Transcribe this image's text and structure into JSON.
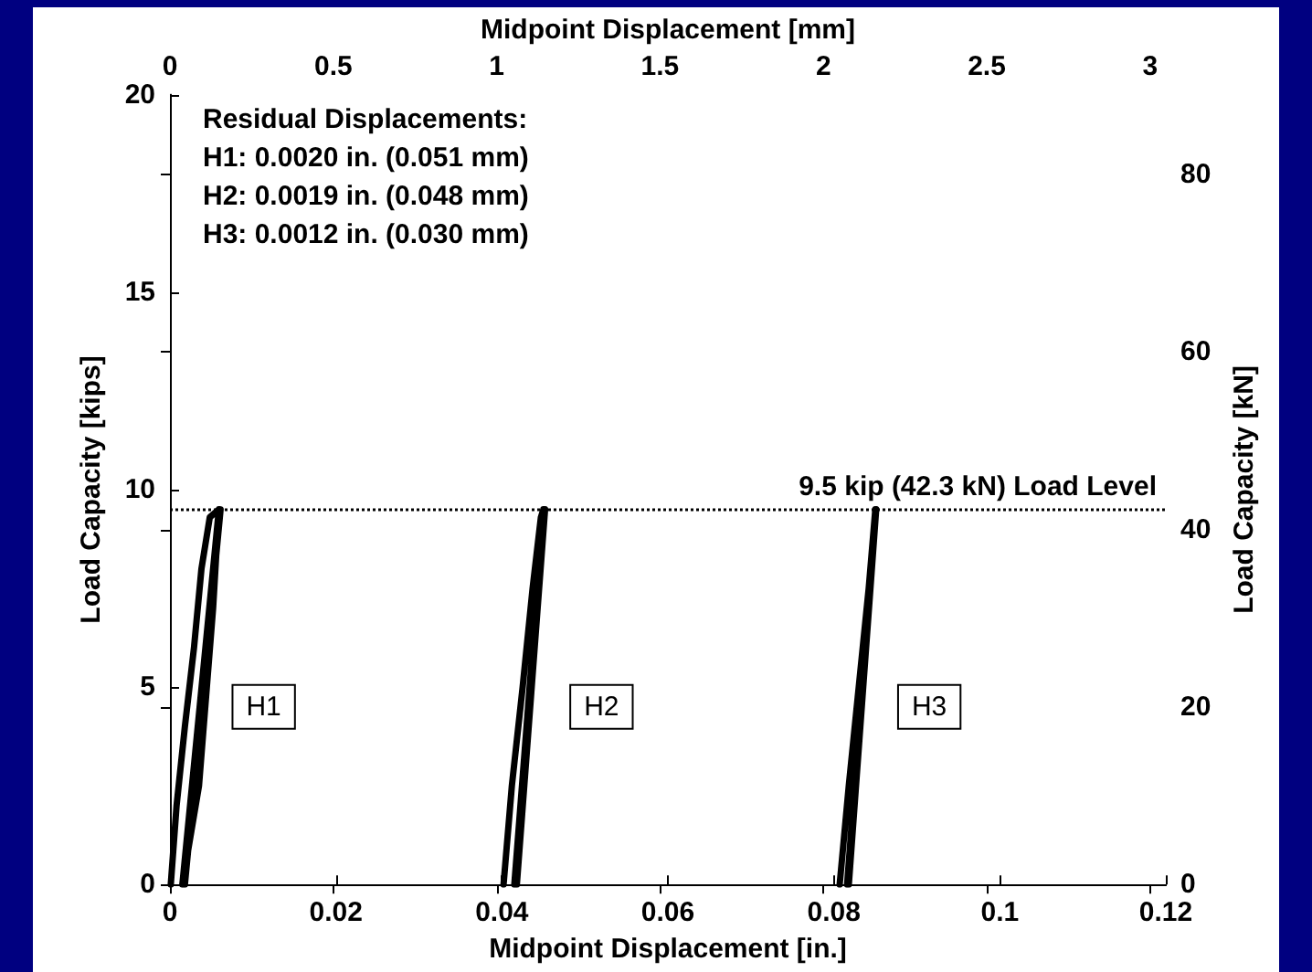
{
  "chart_data": {
    "type": "line",
    "xlabel": "Midpoint Displacement [in.]",
    "x2label": "Midpoint Displacement [mm]",
    "ylabel": "Load Capacity [kips]",
    "y2label": "Load Capacity [kN]",
    "xlim": [
      0,
      0.12
    ],
    "xticks": [
      0,
      0.02,
      0.04,
      0.06,
      0.08,
      0.1,
      0.12
    ],
    "x2lim": [
      0,
      3.048
    ],
    "x2ticks": [
      0,
      0.5,
      1,
      1.5,
      2,
      2.5,
      3
    ],
    "ylim": [
      0,
      20
    ],
    "yticks": [
      0,
      5,
      10,
      15,
      20
    ],
    "y2lim": [
      0,
      88.96
    ],
    "y2ticks": [
      0,
      20,
      40,
      60,
      80
    ],
    "grid": false,
    "marker": "none",
    "line_style": "solid",
    "series": [
      {
        "color": "#000000",
        "x": [
          0.0001,
          0.0008,
          0.0018,
          0.0029,
          0.0038,
          0.0048,
          0.0059,
          0.0052,
          0.0035,
          0.0015,
          0.0059,
          0.0016,
          0.006,
          0.0017,
          0.0061,
          0.0018,
          0.006
        ],
        "values": [
          0,
          2,
          4,
          6,
          8,
          9.3,
          9.5,
          7,
          2.5,
          0,
          9.5,
          0,
          9.5,
          0,
          9.5,
          0,
          9.5
        ]
      },
      {
        "color": "#000000",
        "x": [
          0.0402,
          0.0412,
          0.0425,
          0.0437,
          0.0447,
          0.045,
          0.0415,
          0.045,
          0.0417,
          0.0451,
          0.0418,
          0.0452
        ],
        "values": [
          0,
          2.5,
          5,
          7.5,
          9.3,
          9.5,
          0,
          9.5,
          0,
          9.5,
          0,
          9.5
        ]
      },
      {
        "color": "#000000",
        "x": [
          0.0807,
          0.0818,
          0.083,
          0.0842,
          0.085,
          0.0816,
          0.085,
          0.0817,
          0.0851,
          0.0818,
          0.0851
        ],
        "values": [
          0,
          2.5,
          5,
          7.5,
          9.5,
          0,
          9.5,
          0,
          9.5,
          0,
          9.5
        ]
      }
    ],
    "ref_lines": [
      {
        "axis": "y",
        "value": 9.5,
        "label": "9.5 kip (42.3 kN) Load Level",
        "line_style": "dotted",
        "color": "#000000"
      }
    ],
    "annotations": [
      "Residual Displacements:\nH1: 0.0020 in. (0.051 mm)\nH2: 0.0019 in. (0.048 mm)\nH3: 0.0012 in. (0.030 mm)",
      {
        "text": "H1",
        "x": 0.0113,
        "y": 4.5
      },
      {
        "text": "H2",
        "x": 0.052,
        "y": 4.5
      },
      {
        "text": "H3",
        "x": 0.0915,
        "y": 4.5
      }
    ]
  }
}
